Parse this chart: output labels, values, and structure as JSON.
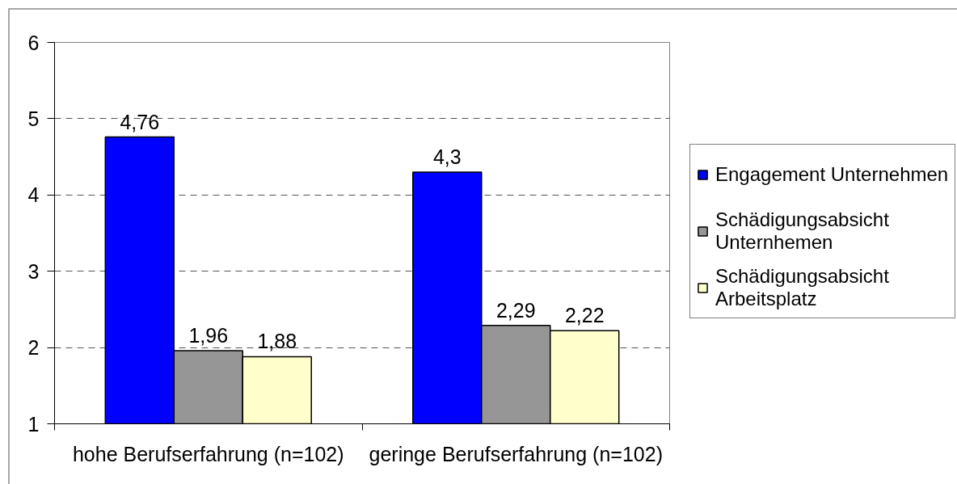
{
  "chart_data": {
    "type": "bar",
    "categories": [
      "hohe Berufserfahrung (n=102)",
      "geringe Berufserfahrung (n=102)"
    ],
    "series": [
      {
        "name": "Engagement Unternehmen",
        "color": "#0000ff",
        "values": [
          4.76,
          4.3
        ],
        "value_labels": [
          "4,76",
          "4,3"
        ]
      },
      {
        "name": "Schädigungsabsicht Unternhemen",
        "color": "#969696",
        "values": [
          1.96,
          2.29
        ],
        "value_labels": [
          "1,96",
          "2,29"
        ]
      },
      {
        "name": "Schädigungsabsicht Arbeitsplatz",
        "color": "#ffffcc",
        "values": [
          1.88,
          2.22
        ],
        "value_labels": [
          "1,88",
          "2,22"
        ]
      }
    ],
    "ylim": [
      1,
      6
    ],
    "yticks": [
      1,
      2,
      3,
      4,
      5,
      6
    ],
    "grid": "y",
    "legend": "right"
  }
}
